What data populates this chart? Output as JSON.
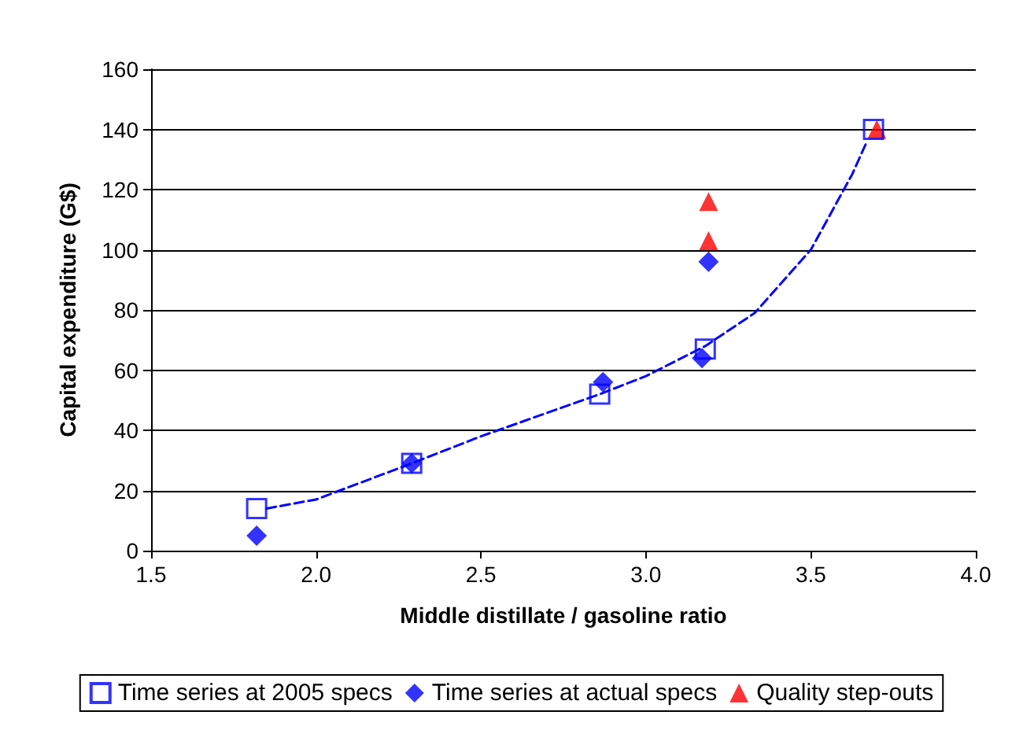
{
  "chart_data": {
    "type": "scatter",
    "xlabel": "Middle distillate / gasoline ratio",
    "ylabel": "Capital expenditure (G$)",
    "xlim": [
      1.5,
      4.0
    ],
    "xticks": [
      {
        "value": 1.5,
        "label": "1.5"
      },
      {
        "value": 2,
        "label": "2.0"
      },
      {
        "value": 2.5,
        "label": "2.5"
      },
      {
        "value": 3,
        "label": "3.0"
      },
      {
        "value": 3.5,
        "label": "3.5"
      },
      {
        "value": 4,
        "label": "4.0"
      }
    ],
    "ylim": [
      0,
      160
    ],
    "yticks": [
      0,
      20,
      40,
      60,
      80,
      100,
      120,
      140,
      160
    ],
    "grid": "y",
    "legend": "bottom",
    "series": [
      {
        "name": "Time series at 2005 specs",
        "color": "#0000ff",
        "marker": "square",
        "x": [
          1.82,
          2.29,
          2.86,
          3.18,
          3.69
        ],
        "values": [
          14,
          29,
          52,
          67,
          140
        ]
      },
      {
        "name": "Time series at actual specs",
        "color": "#0000ff",
        "marker": "diamond",
        "x": [
          1.82,
          2.29,
          2.87,
          3.17,
          3.19
        ],
        "values": [
          5,
          29,
          56,
          64,
          96
        ]
      },
      {
        "name": "Quality step-outs",
        "color": "#ff0000",
        "marker": "triangle",
        "x": [
          3.19,
          3.19,
          3.7
        ],
        "values": [
          116,
          103,
          140
        ]
      },
      {
        "type": "line",
        "color": "#0000ff",
        "line_style": "dashed",
        "marker": "none",
        "x": [
          1.85,
          2.0,
          2.29,
          2.5,
          2.86,
          3.0,
          3.18,
          3.33,
          3.5,
          3.625,
          3.67
        ],
        "values": [
          14,
          17,
          29,
          38,
          52,
          58,
          68,
          79,
          100,
          125,
          136
        ]
      }
    ]
  }
}
